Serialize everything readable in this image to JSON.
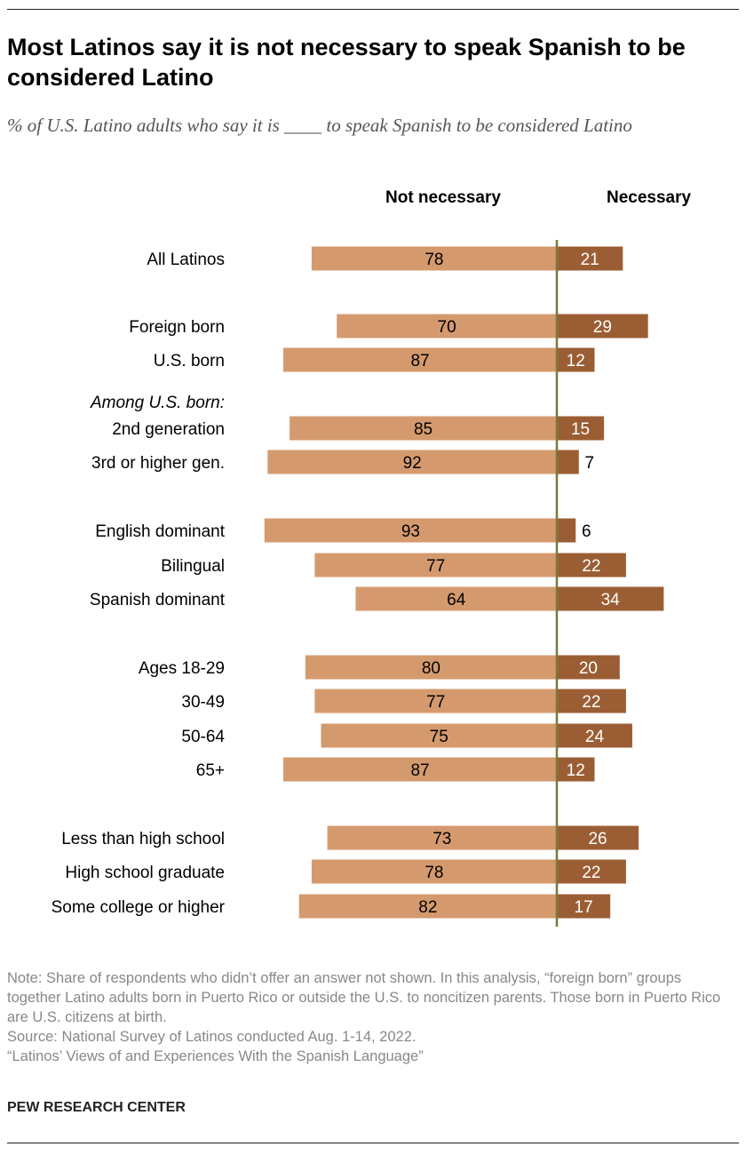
{
  "title": "Most Latinos say it is not necessary to speak Spanish to be considered Latino",
  "subtitle": "% of U.S. Latino adults who say it is ____ to speak Spanish to be considered Latino",
  "notes": [
    "Note: Share of respondents who didn’t offer an answer not shown. In this analysis, “foreign born” groups together Latino adults born in Puerto Rico or outside the U.S. to noncitizen parents. Those born in Puerto Rico are U.S. citizens at birth.",
    "Source: National Survey of Latinos conducted Aug. 1-14, 2022.",
    "“Latinos’ Views of and Experiences With the Spanish Language”"
  ],
  "brand": "PEW RESEARCH CENTER",
  "chart_data": {
    "type": "bar",
    "orientation": "horizontal-diverging",
    "colors": {
      "not_necessary": "#D49A6E",
      "necessary": "#9B5E34",
      "axis": "#767B3A"
    },
    "series": [
      {
        "name": "Not necessary",
        "values": [
          78,
          70,
          87,
          85,
          92,
          93,
          77,
          64,
          80,
          77,
          75,
          87,
          73,
          78,
          82
        ]
      },
      {
        "name": "Necessary",
        "values": [
          21,
          29,
          12,
          15,
          7,
          6,
          22,
          34,
          20,
          22,
          24,
          12,
          26,
          22,
          17
        ]
      }
    ],
    "categories": [
      "All Latinos",
      "Foreign born",
      "U.S. born",
      "2nd generation",
      "3rd or higher gen.",
      "English dominant",
      "Bilingual",
      "Spanish dominant",
      "Ages 18-29",
      "30-49",
      "50-64",
      "65+",
      "Less than high school",
      "High school graduate",
      "Some college or higher"
    ],
    "group_label": "Among U.S. born:",
    "xlim": [
      -100,
      100
    ]
  }
}
